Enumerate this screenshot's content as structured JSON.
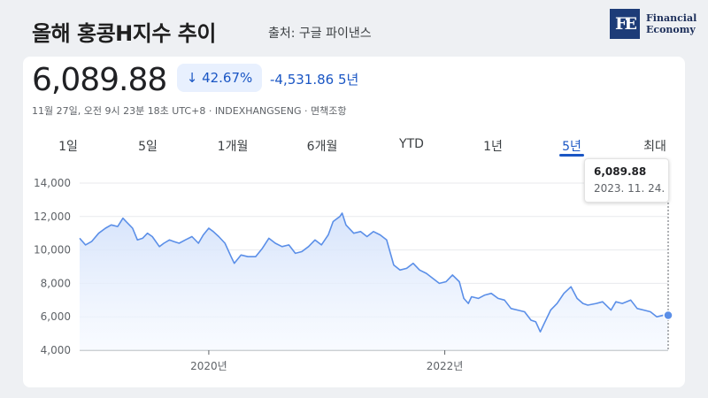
{
  "header": {
    "title": "올해 홍콩H지수 추이",
    "source": "출처: 구글 파이낸스",
    "logo_mark": "FE",
    "logo_line1": "Financial",
    "logo_line2": "Economy"
  },
  "quote": {
    "price": "6,089.88",
    "change_pct": "42.67%",
    "change_abs": "-4,531.86",
    "change_period": "5년",
    "timestamp": "11월 27일, 오전 9시 23분 18초 UTC+8 · INDEXHANGSENG · 면책조항"
  },
  "tabs": [
    "1일",
    "5일",
    "1개월",
    "6개월",
    "YTD",
    "1년",
    "5년",
    "최대"
  ],
  "active_tab": 6,
  "tooltip": {
    "value": "6,089.88",
    "date": "2023. 11. 24."
  },
  "colors": {
    "line": "#5b8fe8",
    "accent": "#1a56c4",
    "down": "#1a56c4"
  },
  "chart_data": {
    "type": "area",
    "x_tick_labels": [
      "2020년",
      "2022년"
    ],
    "x_tick_dates": [
      "2020-01-01",
      "2022-01-01"
    ],
    "xlim": [
      "2018-11-27",
      "2023-11-24"
    ],
    "ylim": [
      4000,
      14000
    ],
    "y_ticks": [
      4000,
      6000,
      8000,
      10000,
      12000,
      14000
    ],
    "y_tick_labels": [
      "4,000",
      "6,000",
      "8,000",
      "10,000",
      "12,000",
      "14,000"
    ],
    "grid": true,
    "series": [
      {
        "x": [
          "2018-11-27",
          "2018-12-15",
          "2019-01-03",
          "2019-01-25",
          "2019-02-15",
          "2019-03-05",
          "2019-03-25",
          "2019-04-10",
          "2019-04-20",
          "2019-05-10",
          "2019-05-25",
          "2019-06-10",
          "2019-06-25",
          "2019-07-10",
          "2019-08-01",
          "2019-08-15",
          "2019-09-01",
          "2019-09-15",
          "2019-10-01",
          "2019-10-20",
          "2019-11-10",
          "2019-11-30",
          "2019-12-15",
          "2020-01-01",
          "2020-01-15",
          "2020-02-01",
          "2020-02-20",
          "2020-03-10",
          "2020-03-20",
          "2020-04-10",
          "2020-05-01",
          "2020-05-25",
          "2020-06-15",
          "2020-07-05",
          "2020-07-25",
          "2020-08-15",
          "2020-09-05",
          "2020-09-25",
          "2020-10-15",
          "2020-11-05",
          "2020-11-25",
          "2020-12-15",
          "2021-01-05",
          "2021-01-20",
          "2021-02-10",
          "2021-02-17",
          "2021-03-01",
          "2021-03-25",
          "2021-04-15",
          "2021-05-05",
          "2021-05-25",
          "2021-06-15",
          "2021-07-05",
          "2021-07-27",
          "2021-08-15",
          "2021-09-05",
          "2021-09-25",
          "2021-10-15",
          "2021-11-05",
          "2021-11-25",
          "2021-12-15",
          "2022-01-05",
          "2022-01-25",
          "2022-02-15",
          "2022-03-01",
          "2022-03-15",
          "2022-03-25",
          "2022-04-15",
          "2022-05-05",
          "2022-05-25",
          "2022-06-15",
          "2022-07-05",
          "2022-07-25",
          "2022-08-15",
          "2022-09-05",
          "2022-09-25",
          "2022-10-10",
          "2022-10-24",
          "2022-11-05",
          "2022-11-25",
          "2022-12-15",
          "2023-01-05",
          "2023-01-27",
          "2023-02-15",
          "2023-03-05",
          "2023-03-20",
          "2023-04-15",
          "2023-05-05",
          "2023-05-31",
          "2023-06-15",
          "2023-07-05",
          "2023-07-31",
          "2023-08-20",
          "2023-09-10",
          "2023-09-30",
          "2023-10-20",
          "2023-11-10",
          "2023-11-24"
        ],
        "y": [
          10700,
          10300,
          10500,
          11000,
          11300,
          11500,
          11400,
          11900,
          11700,
          11300,
          10600,
          10700,
          11000,
          10800,
          10200,
          10400,
          10600,
          10500,
          10400,
          10600,
          10800,
          10400,
          10900,
          11300,
          11100,
          10800,
          10400,
          9600,
          9200,
          9700,
          9600,
          9600,
          10100,
          10700,
          10400,
          10200,
          10300,
          9800,
          9900,
          10200,
          10600,
          10300,
          10900,
          11700,
          12000,
          12200,
          11500,
          11000,
          11100,
          10800,
          11100,
          10900,
          10600,
          9100,
          8800,
          8900,
          9200,
          8800,
          8600,
          8300,
          8000,
          8100,
          8500,
          8100,
          7100,
          6800,
          7200,
          7100,
          7300,
          7400,
          7100,
          7000,
          6500,
          6400,
          6300,
          5800,
          5700,
          5100,
          5600,
          6400,
          6800,
          7400,
          7800,
          7100,
          6800,
          6700,
          6800,
          6900,
          6400,
          6900,
          6800,
          7000,
          6500,
          6400,
          6300,
          6000,
          6100,
          6089.88
        ]
      }
    ]
  }
}
